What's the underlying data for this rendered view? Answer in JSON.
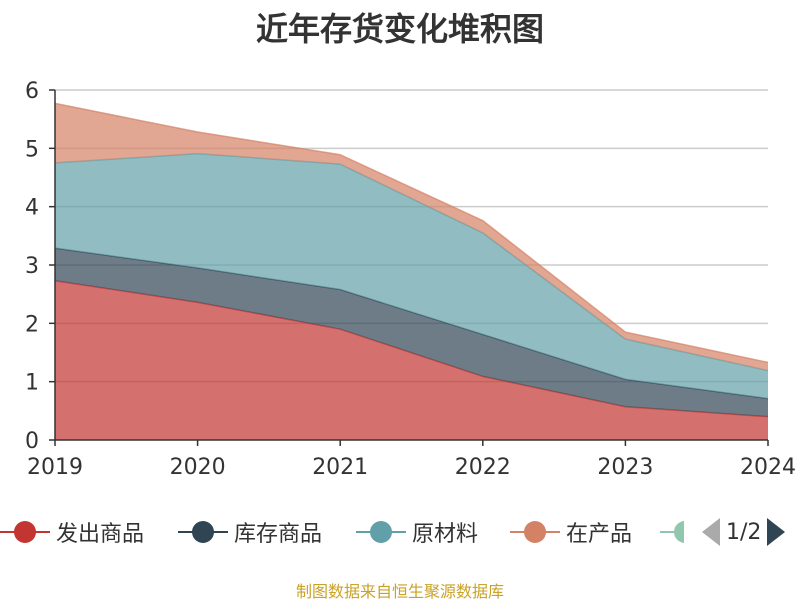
{
  "title": "近年存货变化堆积图",
  "footer": "制图数据来自恒生聚源数据库",
  "legend": {
    "items": [
      {
        "label": "发出商品",
        "color": "#c23531"
      },
      {
        "label": "库存商品",
        "color": "#2f4554"
      },
      {
        "label": "原材料",
        "color": "#61a0a8"
      },
      {
        "label": "在产品",
        "color": "#d48265"
      }
    ],
    "partial_item_color": "#91c7ae",
    "page_text": "1/2"
  },
  "chart_data": {
    "type": "area",
    "stacked": true,
    "x": [
      "2019",
      "2020",
      "2021",
      "2022",
      "2023",
      "2024"
    ],
    "ylim": [
      0,
      6
    ],
    "yticks": [
      "0",
      "1",
      "2",
      "3",
      "4",
      "5",
      "6"
    ],
    "grid": true,
    "series": [
      {
        "name": "发出商品",
        "color": "#c23531",
        "values": [
          2.73,
          2.36,
          1.9,
          1.09,
          0.57,
          0.4
        ]
      },
      {
        "name": "库存商品",
        "color": "#2f4554",
        "values": [
          0.56,
          0.59,
          0.68,
          0.72,
          0.47,
          0.31
        ]
      },
      {
        "name": "原材料",
        "color": "#61a0a8",
        "values": [
          1.46,
          1.96,
          2.15,
          1.74,
          0.69,
          0.48
        ]
      },
      {
        "name": "在产品",
        "color": "#d48265",
        "values": [
          1.02,
          0.37,
          0.16,
          0.21,
          0.12,
          0.14
        ]
      }
    ]
  }
}
